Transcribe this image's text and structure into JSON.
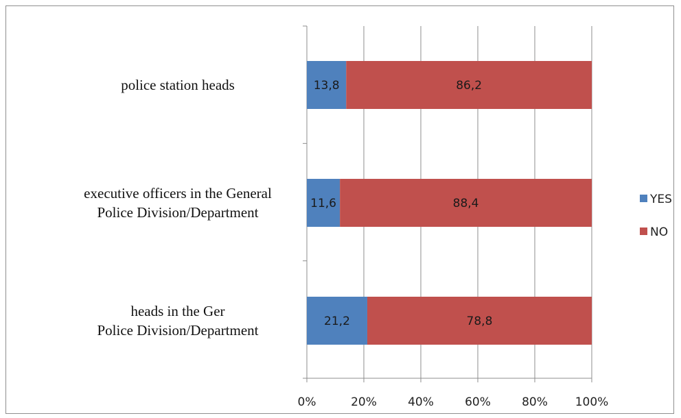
{
  "chart_data": {
    "type": "bar",
    "orientation": "horizontal",
    "stacked": "percent",
    "categories": [
      [
        "police station heads"
      ],
      [
        "executive officers in the General",
        "Police Division/Department"
      ],
      [
        "heads in the Ger",
        "Police Division/Department"
      ]
    ],
    "series": [
      {
        "name": "YES",
        "color": "#4f81bd",
        "values": [
          13.8,
          11.6,
          21.2
        ],
        "labels": [
          "13,8",
          "11,6",
          "21,2"
        ]
      },
      {
        "name": "NO",
        "color": "#c0504d",
        "values": [
          86.2,
          88.4,
          78.8
        ],
        "labels": [
          "86,2",
          "88,4",
          "78,8"
        ]
      }
    ],
    "xlim": [
      0,
      100
    ],
    "x_ticks": [
      "0%",
      "20%",
      "40%",
      "60%",
      "80%",
      "100%"
    ],
    "grid": true,
    "legend_position": "right"
  }
}
